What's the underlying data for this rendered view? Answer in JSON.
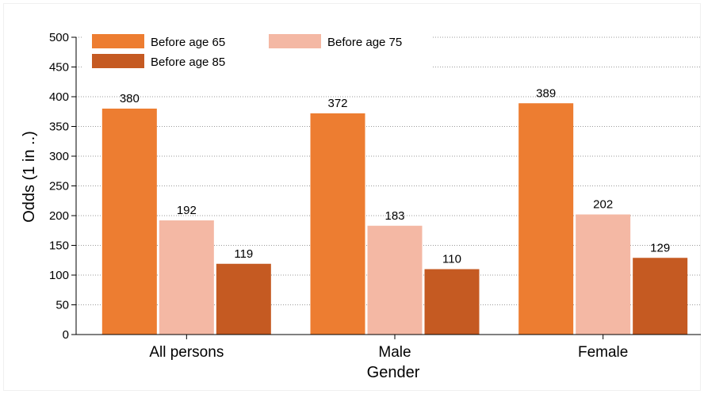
{
  "chart_data": {
    "type": "bar",
    "title": "",
    "xlabel": "Gender",
    "ylabel": "Odds (1 in ..)",
    "ylim": [
      0,
      500
    ],
    "yticks": [
      0,
      50,
      100,
      150,
      200,
      250,
      300,
      350,
      400,
      450,
      500
    ],
    "grid": true,
    "legend_position": "top-left",
    "categories": [
      "All persons",
      "Male",
      "Female"
    ],
    "series": [
      {
        "name": "Before age 65",
        "color": "#ED7D31",
        "values": [
          380,
          372,
          389
        ]
      },
      {
        "name": "Before age 75",
        "color": "#F4B8A4",
        "values": [
          192,
          183,
          202
        ]
      },
      {
        "name": "Before age 85",
        "color": "#C55A22",
        "values": [
          119,
          110,
          129
        ]
      }
    ]
  }
}
